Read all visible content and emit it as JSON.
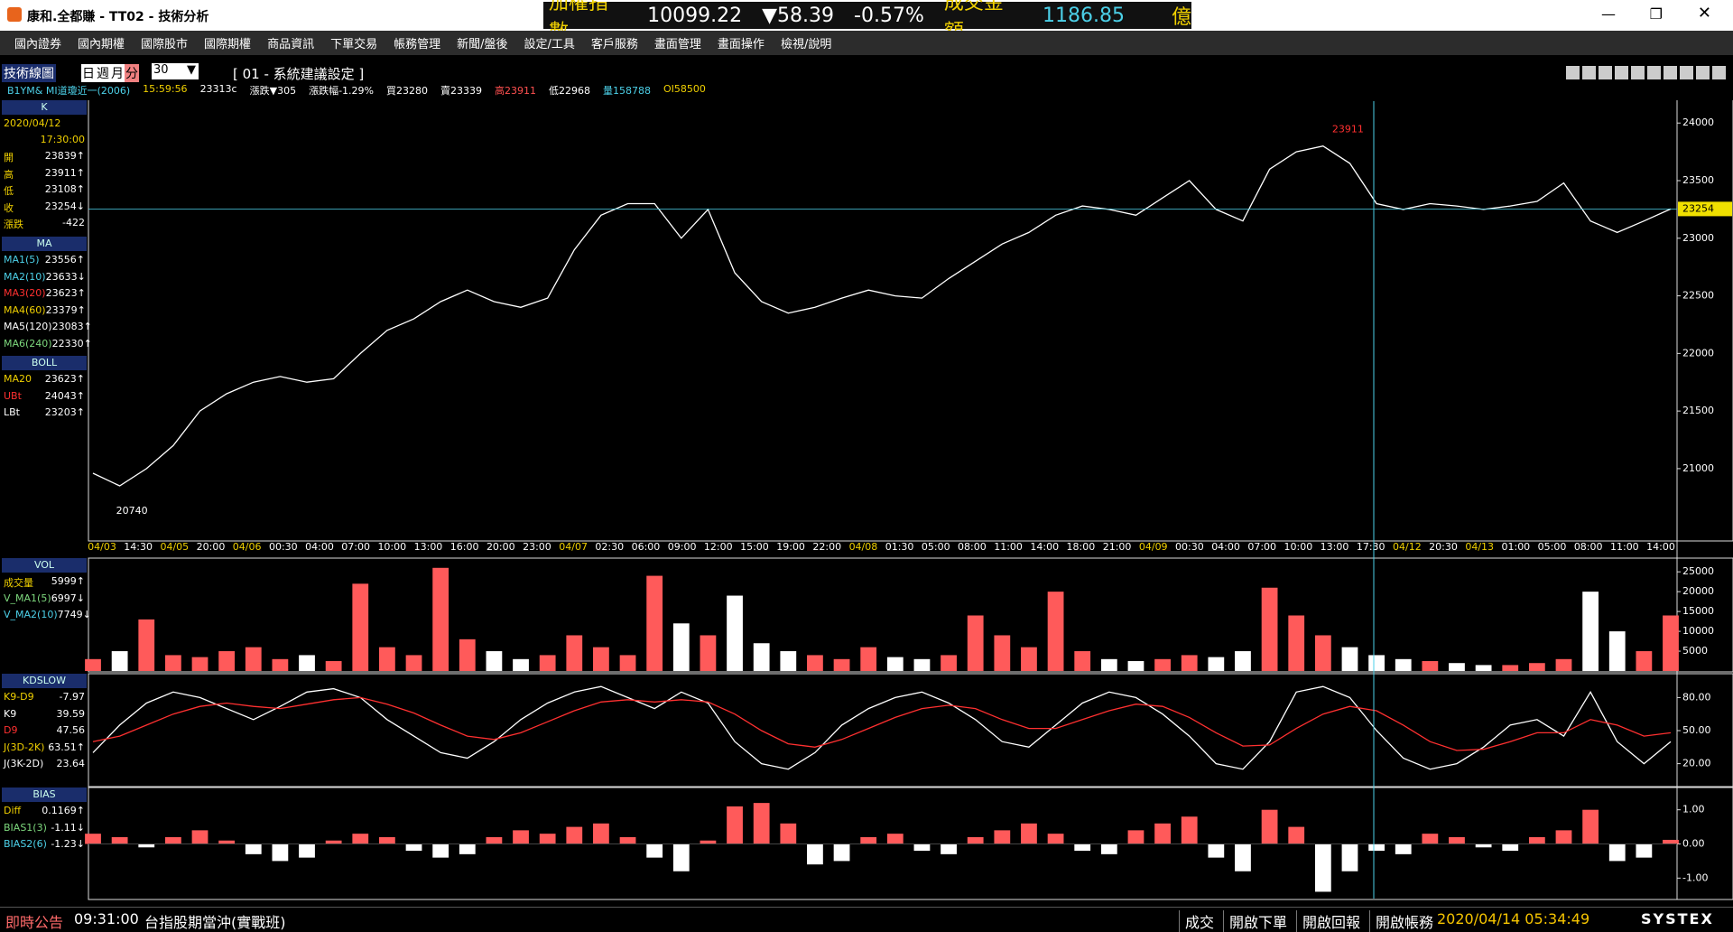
{
  "window": {
    "title": "康和.全都賺 - TT02 - 技術分析",
    "ticker": [
      "加權指數",
      "10099.22",
      "▼58.39",
      "-0.57%",
      "成交金額",
      "1186.85",
      "億"
    ]
  },
  "menu": [
    "國內證券",
    "國內期權",
    "國際股市",
    "國際期權",
    "商品資訊",
    "下單交易",
    "帳務管理",
    "新聞/盤後",
    "設定/工具",
    "客戶服務",
    "畫面管理",
    "畫面操作",
    "檢視/說明"
  ],
  "toolbar": {
    "label": "技術線圖",
    "periods": [
      "日",
      "週",
      "月",
      "分"
    ],
    "interval": "30",
    "setting": "[ 01 - 系統建議設定 ]"
  },
  "quote": [
    "B1YM&  MI道瓊近一(2006)",
    "15:59:56",
    "23313c",
    "漲跌▼305",
    "漲跌幅-1.29%",
    "買23280",
    "賣23339",
    "高23911",
    "低22968",
    "量158788",
    "OI58500"
  ],
  "side": {
    "k": {
      "header": "K",
      "date": "2020/04/12",
      "time": "17:30:00",
      "rows": [
        [
          "開",
          "23839↑"
        ],
        [
          "高",
          "23911↑"
        ],
        [
          "低",
          "23108↑"
        ],
        [
          "收",
          "23254↓"
        ],
        [
          "漲跌",
          "-422"
        ]
      ]
    },
    "ma": {
      "header": "MA",
      "rows": [
        [
          "MA1(5)",
          "23556↑"
        ],
        [
          "MA2(10)",
          "23633↓"
        ],
        [
          "MA3(20)",
          "23623↑"
        ],
        [
          "MA4(60)",
          "23379↑"
        ],
        [
          "MA5(120)",
          "23083↑"
        ],
        [
          "MA6(240)",
          "22330↑"
        ]
      ]
    },
    "boll": {
      "header": "BOLL",
      "rows": [
        [
          "MA20",
          "23623↑"
        ],
        [
          "UBt",
          "24043↑"
        ],
        [
          "LBt",
          "23203↑"
        ]
      ]
    },
    "vol": {
      "header": "VOL",
      "rows": [
        [
          "成交量",
          "5999↑"
        ],
        [
          "V_MA1(5)",
          "6997↓"
        ],
        [
          "V_MA2(10)",
          "7749↓"
        ]
      ]
    },
    "kd": {
      "header": "KDSLOW",
      "rows": [
        [
          "K9-D9",
          "-7.97"
        ],
        [
          "K9",
          "39.59"
        ],
        [
          "D9",
          "47.56"
        ],
        [
          "J(3D-2K)",
          "63.51↑"
        ],
        [
          "J(3K-2D)",
          "23.64"
        ]
      ]
    },
    "bias": {
      "header": "BIAS",
      "rows": [
        [
          "Diff",
          "0.1169↑"
        ],
        [
          "BIAS1(3)",
          "-1.11↓"
        ],
        [
          "BIAS2(6)",
          "-1.23↓"
        ]
      ]
    }
  },
  "chart_data": [
    {
      "type": "line",
      "color": "#ffffff",
      "x_labels": [
        "04/03",
        "14:30",
        "04/05",
        "20:00",
        "04/06",
        "00:30",
        "04:00",
        "07:00",
        "10:00",
        "13:00",
        "16:00",
        "20:00",
        "23:00",
        "04/07",
        "02:30",
        "06:00",
        "09:00",
        "12:00",
        "15:00",
        "19:00",
        "22:00",
        "04/08",
        "01:30",
        "05:00",
        "08:00",
        "11:00",
        "14:00",
        "18:00",
        "21:00",
        "04/09",
        "00:30",
        "04:00",
        "07:00",
        "10:00",
        "13:00",
        "17:30",
        "04/12",
        "20:30",
        "04/13",
        "01:00",
        "05:00",
        "08:00",
        "11:00",
        "14:00"
      ],
      "values": [
        20960,
        20850,
        21000,
        21200,
        21500,
        21650,
        21750,
        21800,
        21750,
        21780,
        22000,
        22200,
        22300,
        22450,
        22550,
        22450,
        22400,
        22480,
        22900,
        23200,
        23300,
        23300,
        23000,
        23250,
        22700,
        22450,
        22350,
        22400,
        22480,
        22550,
        22500,
        22480,
        22650,
        22800,
        22950,
        23050,
        23200,
        23280,
        23250,
        23200,
        23350,
        23500,
        23250,
        23150,
        23600,
        23750,
        23800,
        23650,
        23300,
        23250,
        23300,
        23280,
        23250,
        23280,
        23320,
        23480,
        23150,
        23050,
        23150,
        23254
      ],
      "ylim": [
        20380,
        24190
      ],
      "yticks": [
        21000,
        21500,
        22000,
        22500,
        23000,
        23500,
        24000
      ],
      "last_price": 23254,
      "low_label": 20740,
      "high_label": 23911
    },
    {
      "type": "bar",
      "color": "#ff5a5a",
      "values": [
        3000,
        5000,
        13000,
        4000,
        3500,
        5000,
        6000,
        3000,
        4000,
        2500,
        22000,
        6000,
        4000,
        26000,
        8000,
        5000,
        3000,
        4000,
        9000,
        6000,
        4000,
        24000,
        12000,
        9000,
        19000,
        7000,
        5000,
        4000,
        3000,
        6000,
        3500,
        3000,
        4000,
        14000,
        9000,
        6000,
        20000,
        5000,
        3000,
        2500,
        3000,
        4000,
        3500,
        5000,
        21000,
        14000,
        9000,
        6000,
        4000,
        3000,
        2500,
        2000,
        1500,
        1500,
        2000,
        3000,
        20000,
        10000,
        5000,
        14000
      ],
      "ylim": [
        0,
        28000
      ],
      "yticks": [
        5000,
        10000,
        15000,
        20000,
        25000
      ]
    },
    {
      "type": "line",
      "series": [
        {
          "color": "#ffffff",
          "values": [
            30,
            55,
            75,
            85,
            80,
            70,
            60,
            72,
            85,
            88,
            80,
            60,
            45,
            30,
            25,
            40,
            60,
            75,
            85,
            90,
            80,
            70,
            85,
            75,
            40,
            20,
            15,
            30,
            55,
            70,
            80,
            85,
            75,
            60,
            40,
            35,
            55,
            75,
            85,
            80,
            65,
            45,
            20,
            15,
            40,
            85,
            90,
            80,
            50,
            25,
            15,
            20,
            35,
            55,
            60,
            45,
            85,
            40,
            20,
            40
          ]
        },
        {
          "color": "#ff3030",
          "values": [
            40,
            45,
            55,
            65,
            72,
            75,
            72,
            70,
            74,
            78,
            80,
            74,
            66,
            55,
            45,
            42,
            48,
            58,
            68,
            76,
            78,
            76,
            78,
            76,
            65,
            50,
            38,
            35,
            42,
            52,
            62,
            70,
            73,
            70,
            60,
            52,
            52,
            60,
            68,
            74,
            72,
            62,
            48,
            36,
            37,
            52,
            65,
            72,
            68,
            55,
            40,
            32,
            33,
            40,
            48,
            48,
            60,
            55,
            45,
            48
          ]
        }
      ],
      "ylim": [
        0,
        100
      ],
      "yticks": [
        {
          "value": 20,
          "label": "20.00"
        },
        {
          "value": 50,
          "label": "50.00"
        },
        {
          "value": 80,
          "label": "80.00"
        }
      ]
    },
    {
      "type": "bar",
      "color": "#ff5a5a",
      "values": [
        0.3,
        0.2,
        -0.1,
        0.2,
        0.4,
        0.1,
        -0.3,
        -0.5,
        -0.4,
        0.1,
        0.3,
        0.2,
        -0.2,
        -0.4,
        -0.3,
        0.2,
        0.4,
        0.3,
        0.5,
        0.6,
        0.2,
        -0.4,
        -0.8,
        0.1,
        1.1,
        1.2,
        0.6,
        -0.6,
        -0.5,
        0.2,
        0.3,
        -0.2,
        -0.3,
        0.2,
        0.4,
        0.6,
        0.3,
        -0.2,
        -0.3,
        0.4,
        0.6,
        0.8,
        -0.4,
        -0.8,
        1.0,
        0.5,
        -1.4,
        -0.8,
        -0.2,
        -0.3,
        0.3,
        0.2,
        -0.1,
        -0.2,
        0.2,
        0.4,
        1.0,
        -0.5,
        -0.4,
        0.12
      ],
      "ylim": [
        -1.6,
        1.6
      ],
      "yticks": [
        {
          "value": -1,
          "label": "-1.00"
        },
        {
          "value": 0,
          "label": "0.00"
        },
        {
          "value": 1,
          "label": "1.00"
        }
      ]
    }
  ],
  "status": {
    "notice": "即時公告",
    "time": "09:31:00",
    "headline": "台指股期當沖(實戰班)",
    "buttons": [
      "成交",
      "開啟下單",
      "開啟回報",
      "開啟帳務"
    ],
    "clock": "2020/04/14 05:34:49",
    "brand": "SYSTEX"
  }
}
